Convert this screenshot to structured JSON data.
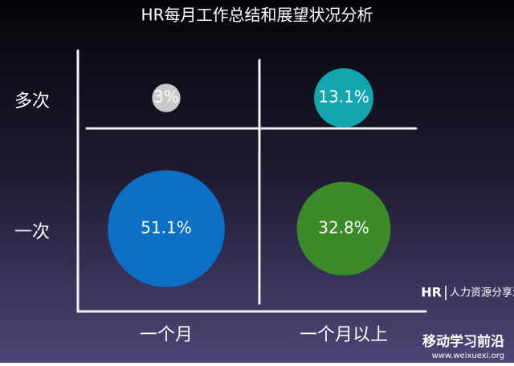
{
  "chart_data": {
    "type": "bubble",
    "title": "HR每月工作总结和展望状况分析",
    "categories": [
      "一个月",
      "一个月以上"
    ],
    "y_categories": [
      "多次",
      "一次"
    ],
    "x": [
      "一个月",
      "一个月以上",
      "一个月",
      "一个月以上"
    ],
    "y": [
      "多次",
      "多次",
      "一次",
      "一次"
    ],
    "values": [
      3,
      13.1,
      51.1,
      32.8
    ],
    "value_labels": [
      "3%",
      "13.1%",
      "51.1%",
      "32.8%"
    ],
    "colors": [
      "#c9c9c9",
      "#13a6ae",
      "#0b6fc4",
      "#3b8a2a"
    ]
  },
  "watermarks": {
    "brand_logo": "HR",
    "brand": "人力资源分享汇",
    "site_name": "移动学习前沿",
    "site_url": "www.weixuexi.org"
  }
}
